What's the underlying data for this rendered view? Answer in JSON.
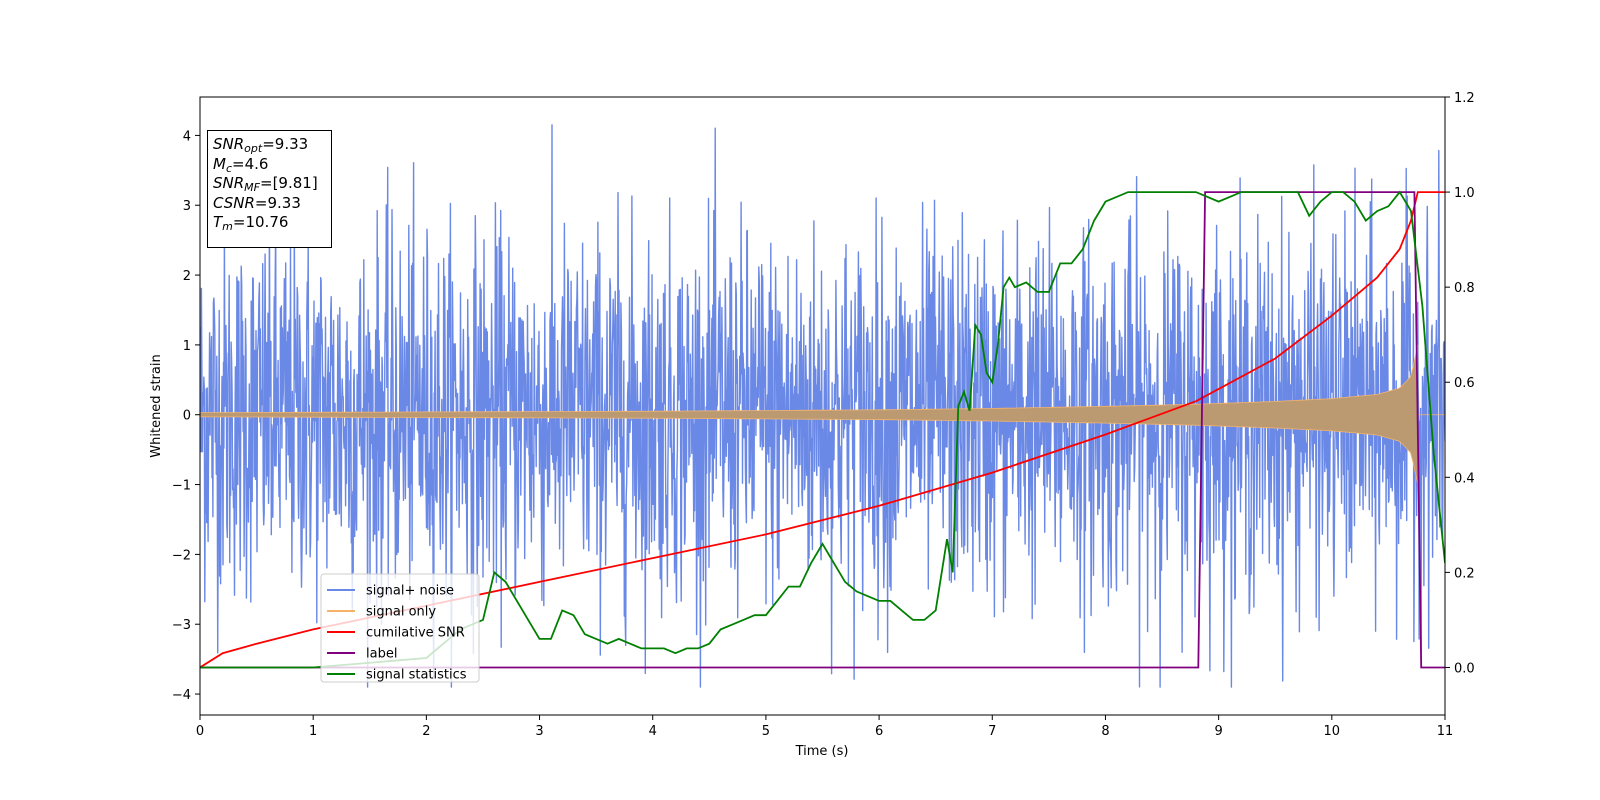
{
  "chart_data": {
    "type": "line",
    "xlabel": "Time (s)",
    "ylabel": "Whitened strain",
    "xlim": [
      0,
      11
    ],
    "ylim": [
      -4.3,
      4.55
    ],
    "ylim_right": [
      -0.1,
      1.2
    ],
    "x_ticks": [
      "0",
      "1",
      "2",
      "3",
      "4",
      "5",
      "6",
      "7",
      "8",
      "9",
      "10",
      "11"
    ],
    "y_ticks": [
      "−4",
      "−3",
      "−2",
      "−1",
      "0",
      "1",
      "2",
      "3",
      "4"
    ],
    "y_right_ticks": [
      "0.0",
      "0.2",
      "0.4",
      "0.6",
      "0.8",
      "1.0",
      "1.2"
    ],
    "legend_position": "lower-left",
    "colors": {
      "signal_noise": "#6a88e5",
      "signal_only": "#f5b36a",
      "cumulative_snr": "#ff0000",
      "label": "#800080",
      "signal_statistics": "#008000",
      "overlap": "#bb9a72"
    },
    "series": [
      {
        "name": "signal+ noise",
        "axis": "left",
        "description_amplitude": 1.3
      },
      {
        "name": "signal only",
        "axis": "left",
        "envelope": {
          "x": [
            0,
            2,
            4,
            6,
            7,
            8,
            8.8,
            9.5,
            10,
            10.4,
            10.6,
            10.7,
            10.76
          ],
          "y": [
            0.03,
            0.04,
            0.05,
            0.07,
            0.09,
            0.12,
            0.15,
            0.19,
            0.23,
            0.29,
            0.38,
            0.55,
            1.0
          ]
        }
      },
      {
        "name": "cumilative SNR",
        "axis": "right",
        "x": [
          0,
          0.2,
          0.5,
          1,
          2,
          3,
          4,
          5,
          6,
          7,
          8,
          8.8,
          9.5,
          10,
          10.4,
          10.6,
          10.7,
          10.76,
          11
        ],
        "y": [
          0.0,
          0.03,
          0.05,
          0.08,
          0.13,
          0.18,
          0.23,
          0.28,
          0.34,
          0.41,
          0.49,
          0.56,
          0.65,
          0.74,
          0.82,
          0.88,
          0.94,
          1.0,
          1.0
        ]
      },
      {
        "name": "label",
        "axis": "right",
        "x": [
          0,
          8.82,
          8.88,
          10.73,
          10.79,
          11
        ],
        "y": [
          0,
          0,
          1,
          1,
          0,
          0
        ]
      },
      {
        "name": "signal statistics",
        "axis": "right",
        "x": [
          0,
          1.0,
          2.0,
          2.3,
          2.5,
          2.6,
          2.7,
          2.8,
          2.9,
          3.0,
          3.1,
          3.2,
          3.3,
          3.4,
          3.5,
          3.6,
          3.7,
          3.8,
          3.9,
          4.0,
          4.1,
          4.2,
          4.3,
          4.4,
          4.5,
          4.6,
          4.7,
          4.8,
          4.9,
          5.0,
          5.1,
          5.2,
          5.3,
          5.4,
          5.5,
          5.6,
          5.7,
          5.8,
          5.9,
          6.0,
          6.1,
          6.2,
          6.3,
          6.4,
          6.5,
          6.6,
          6.65,
          6.7,
          6.75,
          6.8,
          6.85,
          6.9,
          6.95,
          7.0,
          7.05,
          7.1,
          7.15,
          7.2,
          7.3,
          7.4,
          7.5,
          7.6,
          7.7,
          7.8,
          7.9,
          8.0,
          8.2,
          8.5,
          8.8,
          9.0,
          9.2,
          9.5,
          9.7,
          9.8,
          9.9,
          10.0,
          10.1,
          10.2,
          10.3,
          10.4,
          10.5,
          10.6,
          10.7,
          10.8,
          10.9,
          11.0
        ],
        "y": [
          0.0,
          0.0,
          0.02,
          0.08,
          0.1,
          0.2,
          0.18,
          0.14,
          0.1,
          0.06,
          0.06,
          0.12,
          0.11,
          0.07,
          0.06,
          0.05,
          0.06,
          0.05,
          0.04,
          0.04,
          0.04,
          0.03,
          0.04,
          0.04,
          0.05,
          0.08,
          0.09,
          0.1,
          0.11,
          0.11,
          0.14,
          0.17,
          0.17,
          0.22,
          0.26,
          0.22,
          0.18,
          0.16,
          0.15,
          0.14,
          0.14,
          0.12,
          0.1,
          0.1,
          0.12,
          0.27,
          0.2,
          0.55,
          0.58,
          0.54,
          0.72,
          0.7,
          0.62,
          0.6,
          0.68,
          0.8,
          0.82,
          0.8,
          0.81,
          0.79,
          0.79,
          0.85,
          0.85,
          0.88,
          0.94,
          0.98,
          1.0,
          1.0,
          1.0,
          0.98,
          1.0,
          1.0,
          1.0,
          0.95,
          0.98,
          1.0,
          1.0,
          0.98,
          0.94,
          0.96,
          0.97,
          1.0,
          0.96,
          0.76,
          0.45,
          0.22
        ]
      }
    ]
  },
  "legend": {
    "items": [
      {
        "label": "signal+ noise",
        "color": "#6a88e5"
      },
      {
        "label": "signal only",
        "color": "#f5b36a"
      },
      {
        "label": "cumilative SNR",
        "color": "#ff0000"
      },
      {
        "label": "label",
        "color": "#800080"
      },
      {
        "label": "signal statistics",
        "color": "#008000"
      }
    ]
  },
  "infobox": {
    "snr_opt": {
      "sym": "SNR",
      "sub": "opt",
      "val": "=9.33"
    },
    "mc": {
      "sym": "M",
      "sub": "c",
      "val": "=4.6"
    },
    "snr_mf": {
      "sym": "SNR",
      "sub": "MF",
      "val": "=[9.81]"
    },
    "csnr": {
      "sym": "CSNR",
      "val": "=9.33"
    },
    "tm": {
      "sym": "T",
      "sub": "m",
      "val": "=10.76"
    }
  }
}
